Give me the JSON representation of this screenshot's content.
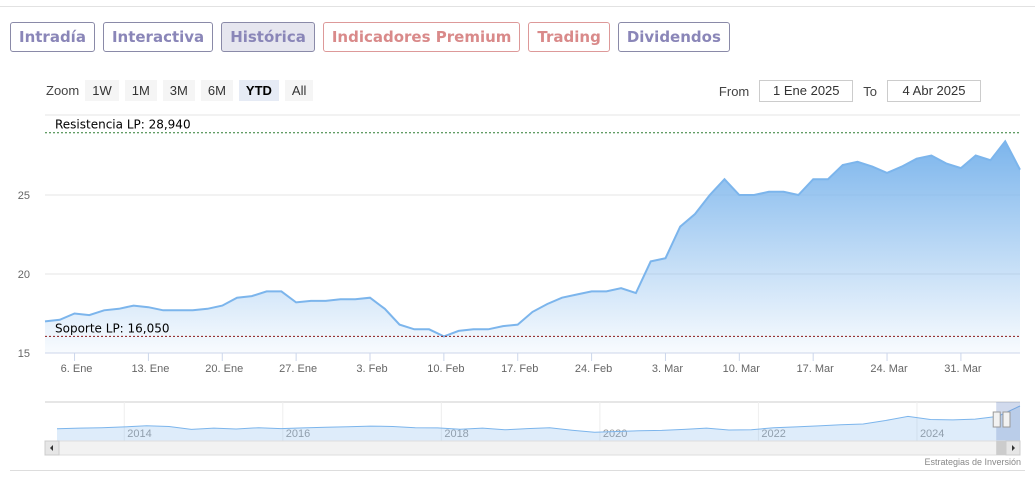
{
  "tabs": [
    {
      "label": "Intradía",
      "style": "normal"
    },
    {
      "label": "Interactiva",
      "style": "normal"
    },
    {
      "label": "Histórica",
      "style": "active"
    },
    {
      "label": "Indicadores Premium",
      "style": "red"
    },
    {
      "label": "Trading",
      "style": "red"
    },
    {
      "label": "Dividendos",
      "style": "normal"
    }
  ],
  "zoom": {
    "label": "Zoom",
    "buttons": [
      "1W",
      "1M",
      "3M",
      "6M",
      "YTD",
      "All"
    ],
    "selected": "YTD"
  },
  "range": {
    "from_label": "From",
    "from": "1 Ene 2025",
    "to_label": "To",
    "to": "4 Abr 2025"
  },
  "credit": "Estrategias de Inversión",
  "chart_data": {
    "type": "area",
    "title": "",
    "ylim": [
      15,
      29.5
    ],
    "yticks": [
      15,
      20,
      25
    ],
    "grid": true,
    "colors": {
      "line": "#7cb5ec",
      "fill_top": "#7cb5ec",
      "fill_bottom": "#ffffff",
      "resistance": "#2e7d32",
      "support": "#8b1a1a"
    },
    "plot_lines": [
      {
        "label": "Resistencia LP: 28,940",
        "value": 28.94
      },
      {
        "label": "Soporte LP: 16,050",
        "value": 16.05
      }
    ],
    "xtick_labels": [
      {
        "date": "2025-01-06",
        "label": "6. Ene"
      },
      {
        "date": "2025-01-13",
        "label": "13. Ene"
      },
      {
        "date": "2025-01-20",
        "label": "20. Ene"
      },
      {
        "date": "2025-01-27",
        "label": "27. Ene"
      },
      {
        "date": "2025-02-03",
        "label": "3. Feb"
      },
      {
        "date": "2025-02-10",
        "label": "10. Feb"
      },
      {
        "date": "2025-02-17",
        "label": "17. Feb"
      },
      {
        "date": "2025-02-24",
        "label": "24. Feb"
      },
      {
        "date": "2025-03-03",
        "label": "3. Mar"
      },
      {
        "date": "2025-03-10",
        "label": "10. Mar"
      },
      {
        "date": "2025-03-17",
        "label": "17. Mar"
      },
      {
        "date": "2025-03-24",
        "label": "24. Mar"
      },
      {
        "date": "2025-03-31",
        "label": "31. Mar"
      }
    ],
    "series": [
      {
        "points": [
          [
            "2025-01-02",
            17.0
          ],
          [
            "2025-01-03",
            17.1
          ],
          [
            "2025-01-06",
            17.5
          ],
          [
            "2025-01-07",
            17.4
          ],
          [
            "2025-01-08",
            17.7
          ],
          [
            "2025-01-09",
            17.8
          ],
          [
            "2025-01-10",
            18.0
          ],
          [
            "2025-01-13",
            17.9
          ],
          [
            "2025-01-14",
            17.7
          ],
          [
            "2025-01-15",
            17.7
          ],
          [
            "2025-01-16",
            17.7
          ],
          [
            "2025-01-17",
            17.8
          ],
          [
            "2025-01-20",
            18.0
          ],
          [
            "2025-01-21",
            18.5
          ],
          [
            "2025-01-22",
            18.6
          ],
          [
            "2025-01-23",
            18.9
          ],
          [
            "2025-01-24",
            18.9
          ],
          [
            "2025-01-27",
            18.2
          ],
          [
            "2025-01-28",
            18.3
          ],
          [
            "2025-01-29",
            18.3
          ],
          [
            "2025-01-30",
            18.4
          ],
          [
            "2025-01-31",
            18.4
          ],
          [
            "2025-02-03",
            18.5
          ],
          [
            "2025-02-04",
            17.8
          ],
          [
            "2025-02-05",
            16.8
          ],
          [
            "2025-02-06",
            16.5
          ],
          [
            "2025-02-07",
            16.5
          ],
          [
            "2025-02-10",
            16.05
          ],
          [
            "2025-02-11",
            16.4
          ],
          [
            "2025-02-12",
            16.5
          ],
          [
            "2025-02-13",
            16.5
          ],
          [
            "2025-02-14",
            16.7
          ],
          [
            "2025-02-17",
            16.8
          ],
          [
            "2025-02-18",
            17.6
          ],
          [
            "2025-02-19",
            18.1
          ],
          [
            "2025-02-20",
            18.5
          ],
          [
            "2025-02-21",
            18.7
          ],
          [
            "2025-02-24",
            18.9
          ],
          [
            "2025-02-25",
            18.9
          ],
          [
            "2025-02-26",
            19.1
          ],
          [
            "2025-02-27",
            18.8
          ],
          [
            "2025-02-28",
            20.8
          ],
          [
            "2025-03-03",
            21.0
          ],
          [
            "2025-03-04",
            23.0
          ],
          [
            "2025-03-05",
            23.8
          ],
          [
            "2025-03-06",
            25.0
          ],
          [
            "2025-03-07",
            26.0
          ],
          [
            "2025-03-10",
            25.0
          ],
          [
            "2025-03-11",
            25.0
          ],
          [
            "2025-03-12",
            25.2
          ],
          [
            "2025-03-13",
            25.2
          ],
          [
            "2025-03-14",
            25.0
          ],
          [
            "2025-03-17",
            26.0
          ],
          [
            "2025-03-18",
            26.0
          ],
          [
            "2025-03-19",
            26.9
          ],
          [
            "2025-03-20",
            27.1
          ],
          [
            "2025-03-21",
            26.8
          ],
          [
            "2025-03-24",
            26.4
          ],
          [
            "2025-03-25",
            26.8
          ],
          [
            "2025-03-26",
            27.3
          ],
          [
            "2025-03-27",
            27.5
          ],
          [
            "2025-03-28",
            27.0
          ],
          [
            "2025-03-31",
            26.7
          ],
          [
            "2025-04-01",
            27.5
          ],
          [
            "2025-04-02",
            27.2
          ],
          [
            "2025-04-03",
            28.4
          ],
          [
            "2025-04-04",
            26.6
          ]
        ]
      }
    ],
    "navigator": {
      "xlim": [
        2013.0,
        2025.3
      ],
      "year_labels": [
        2014,
        2016,
        2018,
        2020,
        2022,
        2024
      ],
      "values": [
        17.5,
        17.8,
        18.0,
        18.4,
        19.0,
        18.6,
        17.2,
        17.8,
        17.4,
        18.0,
        17.6,
        17.9,
        18.2,
        18.5,
        18.8,
        18.6,
        18.0,
        17.9,
        17.3,
        17.8,
        17.0,
        17.6,
        18.0,
        16.8,
        15.8,
        16.2,
        16.5,
        16.7,
        17.2,
        17.8,
        16.9,
        17.0,
        18.0,
        18.4,
        18.9,
        19.4,
        19.8,
        21.5,
        23.5,
        22.0,
        21.8,
        22.2,
        23.5,
        28.5
      ]
    }
  }
}
